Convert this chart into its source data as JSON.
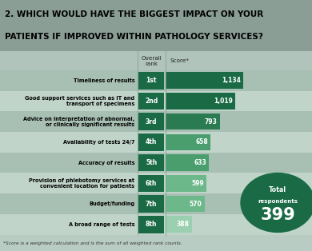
{
  "title_line1": "2. WHICH WOULD HAVE THE BIGGEST IMPACT ON YOUR",
  "title_line2": "PATIENTS IF IMPROVED WITHIN PATHOLOGY SERVICES?",
  "categories": [
    "Timeliness of results",
    "Good support services such as IT and\ntransport of specimens",
    "Advice on interpretation of abnormal,\nor clinically significant results",
    "Availability of tests 24/7",
    "Accuracy of results",
    "Provision of phlebotomy services at\nconvenient location for patients",
    "Budget/funding",
    "A broad range of tests"
  ],
  "ranks": [
    "1st",
    "2nd",
    "3rd",
    "4th",
    "5th",
    "6th",
    "7th",
    "8th"
  ],
  "scores": [
    1134,
    1019,
    793,
    658,
    633,
    599,
    570,
    388
  ],
  "score_labels": [
    "1,134",
    "1,019",
    "793",
    "658",
    "633",
    "599",
    "570",
    "388"
  ],
  "bar_colors": [
    "#1a6b45",
    "#1a6b45",
    "#2a7a52",
    "#4a9e6e",
    "#4a9e6e",
    "#6db88a",
    "#6db88a",
    "#9acfb0"
  ],
  "title_bg": "#8a9e96",
  "bg_color": "#b8ccc4",
  "row_even_bg": "#a8bfb4",
  "row_odd_bg": "#c0d4ca",
  "header_bg": "#b0c4bc",
  "total_respondents": "399",
  "circle_color": "#1a6b45",
  "footnote": "*Score is a weighted calculation and is the sum of all weighted rank counts.",
  "col_header_rank": "Overall\nrank",
  "col_header_score": "Score*",
  "max_score": 1134
}
